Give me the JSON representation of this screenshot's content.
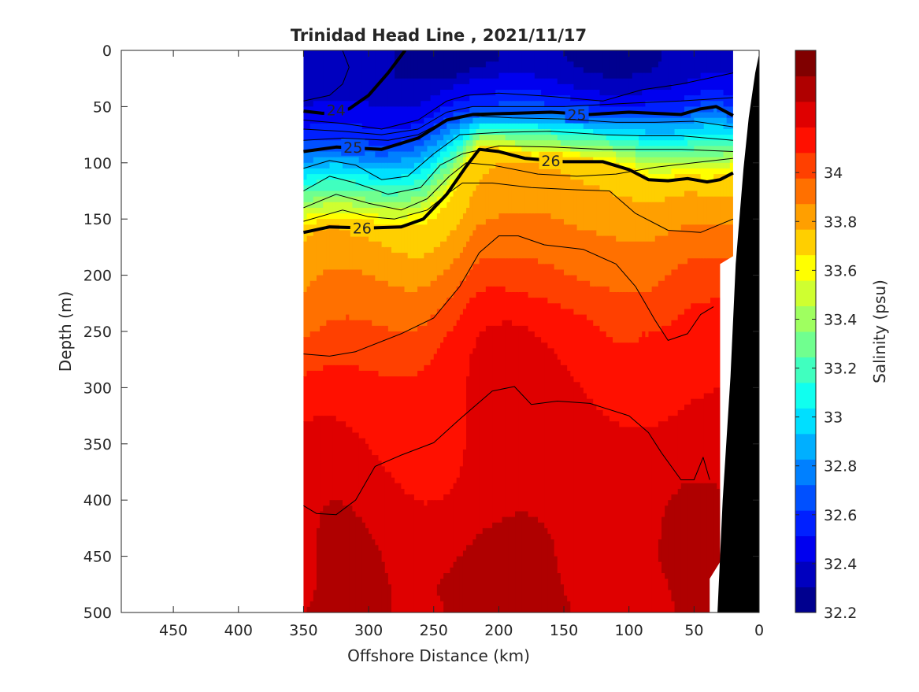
{
  "chart_data": {
    "type": "heatmap",
    "title": "Trinidad Head Line , 2021/11/17",
    "xlabel": "Offshore Distance (km)",
    "ylabel": "Depth (m)",
    "colorbar_label": "Salinity (psu)",
    "xlim": [
      490,
      0
    ],
    "ylim": [
      0,
      500
    ],
    "x_ticks": [
      450,
      400,
      350,
      300,
      250,
      200,
      150,
      100,
      50,
      0
    ],
    "y_ticks": [
      0,
      50,
      100,
      150,
      200,
      250,
      300,
      350,
      400,
      450,
      500
    ],
    "colorbar_range": [
      32.2,
      34.5
    ],
    "colorbar_ticks": [
      32.2,
      32.4,
      32.6,
      32.8,
      33,
      33.2,
      33.4,
      33.6,
      33.8,
      34
    ],
    "colorbar_levels": [
      32.2,
      32.3,
      32.4,
      32.5,
      32.6,
      32.7,
      32.8,
      32.9,
      33.0,
      33.1,
      33.2,
      33.3,
      33.4,
      33.5,
      33.6,
      33.7,
      33.8,
      33.9,
      34.0,
      34.1,
      34.2,
      34.3,
      34.4,
      34.5
    ],
    "colors": [
      "#00008f",
      "#0000bf",
      "#0000ef",
      "#0020ff",
      "#0050ff",
      "#0080ff",
      "#00afff",
      "#00dfff",
      "#10ffef",
      "#40ffbf",
      "#70ff8f",
      "#9fff60",
      "#cfff30",
      "#ffff00",
      "#ffcf00",
      "#ff9f00",
      "#ff7000",
      "#ff4000",
      "#ff1000",
      "#df0000",
      "#af0000",
      "#800000"
    ],
    "data_extent_km": [
      350,
      20
    ],
    "density_contours": [
      {
        "label": "24",
        "bold": true,
        "points": [
          [
            350,
            54
          ],
          [
            335,
            56
          ],
          [
            315,
            52
          ],
          [
            300,
            40
          ],
          [
            285,
            20
          ],
          [
            272,
            0
          ]
        ]
      },
      {
        "label": "25",
        "bold": true,
        "points": [
          [
            350,
            90
          ],
          [
            325,
            86
          ],
          [
            290,
            88
          ],
          [
            262,
            78
          ],
          [
            240,
            62
          ],
          [
            220,
            57
          ],
          [
            190,
            56
          ],
          [
            160,
            55
          ],
          [
            130,
            57
          ],
          [
            100,
            55
          ],
          [
            80,
            56
          ],
          [
            60,
            57
          ],
          [
            45,
            52
          ],
          [
            33,
            50
          ],
          [
            20,
            58
          ]
        ]
      },
      {
        "label": "26",
        "bold": true,
        "points": [
          [
            350,
            162
          ],
          [
            330,
            157
          ],
          [
            300,
            158
          ],
          [
            275,
            157
          ],
          [
            258,
            150
          ],
          [
            240,
            128
          ],
          [
            225,
            103
          ],
          [
            215,
            88
          ],
          [
            200,
            90
          ],
          [
            180,
            96
          ],
          [
            150,
            99
          ],
          [
            120,
            99
          ],
          [
            100,
            106
          ],
          [
            85,
            115
          ],
          [
            70,
            116
          ],
          [
            55,
            114
          ],
          [
            40,
            117
          ],
          [
            30,
            115
          ],
          [
            20,
            109
          ]
        ]
      },
      {
        "label": "",
        "bold": false,
        "points": [
          [
            350,
            45
          ],
          [
            330,
            40
          ],
          [
            320,
            30
          ],
          [
            315,
            15
          ],
          [
            320,
            0
          ]
        ]
      },
      {
        "label": "",
        "bold": false,
        "points": [
          [
            350,
            62
          ],
          [
            320,
            65
          ],
          [
            290,
            70
          ],
          [
            262,
            62
          ],
          [
            240,
            45
          ],
          [
            225,
            40
          ],
          [
            200,
            38
          ],
          [
            160,
            41
          ],
          [
            120,
            45
          ],
          [
            90,
            35
          ],
          [
            60,
            30
          ],
          [
            40,
            25
          ],
          [
            20,
            20
          ]
        ]
      },
      {
        "label": "",
        "bold": false,
        "points": [
          [
            350,
            70
          ],
          [
            320,
            72
          ],
          [
            290,
            75
          ],
          [
            262,
            70
          ],
          [
            240,
            55
          ],
          [
            220,
            50
          ],
          [
            190,
            50
          ],
          [
            150,
            50
          ],
          [
            100,
            47
          ],
          [
            60,
            45
          ],
          [
            20,
            42
          ]
        ]
      },
      {
        "label": "",
        "bold": false,
        "points": [
          [
            350,
            80
          ],
          [
            320,
            78
          ],
          [
            285,
            80
          ],
          [
            262,
            75
          ],
          [
            240,
            62
          ],
          [
            220,
            58
          ],
          [
            190,
            60
          ],
          [
            150,
            61
          ],
          [
            110,
            64
          ],
          [
            80,
            64
          ],
          [
            50,
            63
          ],
          [
            20,
            68
          ]
        ]
      },
      {
        "label": "",
        "bold": false,
        "points": [
          [
            350,
            105
          ],
          [
            330,
            98
          ],
          [
            310,
            102
          ],
          [
            290,
            115
          ],
          [
            270,
            112
          ],
          [
            250,
            92
          ],
          [
            230,
            75
          ],
          [
            200,
            73
          ],
          [
            160,
            72
          ],
          [
            120,
            75
          ],
          [
            90,
            76
          ],
          [
            60,
            76
          ],
          [
            20,
            80
          ]
        ]
      },
      {
        "label": "",
        "bold": false,
        "points": [
          [
            350,
            125
          ],
          [
            330,
            112
          ],
          [
            310,
            118
          ],
          [
            285,
            128
          ],
          [
            260,
            122
          ],
          [
            245,
            102
          ],
          [
            228,
            92
          ],
          [
            200,
            85
          ],
          [
            160,
            86
          ],
          [
            120,
            88
          ],
          [
            90,
            88
          ],
          [
            60,
            88
          ],
          [
            20,
            90
          ]
        ]
      },
      {
        "label": "",
        "bold": false,
        "points": [
          [
            350,
            140
          ],
          [
            325,
            128
          ],
          [
            300,
            136
          ],
          [
            275,
            142
          ],
          [
            255,
            132
          ],
          [
            238,
            112
          ],
          [
            225,
            100
          ],
          [
            205,
            102
          ],
          [
            170,
            110
          ],
          [
            140,
            112
          ],
          [
            110,
            110
          ],
          [
            80,
            104
          ],
          [
            50,
            100
          ],
          [
            20,
            96
          ]
        ]
      },
      {
        "label": "",
        "bold": false,
        "points": [
          [
            350,
            152
          ],
          [
            320,
            142
          ],
          [
            300,
            148
          ],
          [
            280,
            150
          ],
          [
            255,
            142
          ],
          [
            240,
            128
          ],
          [
            228,
            118
          ],
          [
            205,
            118
          ],
          [
            175,
            122
          ],
          [
            140,
            124
          ],
          [
            115,
            125
          ],
          [
            95,
            145
          ],
          [
            70,
            160
          ],
          [
            45,
            162
          ],
          [
            20,
            150
          ]
        ]
      },
      {
        "label": "",
        "bold": false,
        "points": [
          [
            350,
            270
          ],
          [
            330,
            272
          ],
          [
            310,
            268
          ],
          [
            275,
            252
          ],
          [
            250,
            238
          ],
          [
            230,
            210
          ],
          [
            215,
            180
          ],
          [
            200,
            165
          ],
          [
            185,
            165
          ],
          [
            165,
            173
          ],
          [
            135,
            177
          ],
          [
            110,
            190
          ],
          [
            95,
            210
          ],
          [
            80,
            240
          ],
          [
            70,
            258
          ],
          [
            55,
            252
          ],
          [
            45,
            235
          ],
          [
            35,
            228
          ]
        ]
      },
      {
        "label": "",
        "bold": false,
        "points": [
          [
            350,
            405
          ],
          [
            340,
            412
          ],
          [
            325,
            413
          ],
          [
            310,
            400
          ],
          [
            295,
            370
          ],
          [
            275,
            360
          ],
          [
            250,
            349
          ],
          [
            230,
            328
          ],
          [
            205,
            303
          ],
          [
            188,
            299
          ],
          [
            175,
            315
          ],
          [
            155,
            312
          ],
          [
            130,
            314
          ],
          [
            100,
            325
          ],
          [
            85,
            340
          ],
          [
            75,
            358
          ],
          [
            60,
            382
          ],
          [
            50,
            382
          ],
          [
            43,
            362
          ],
          [
            38,
            382
          ]
        ]
      }
    ]
  }
}
